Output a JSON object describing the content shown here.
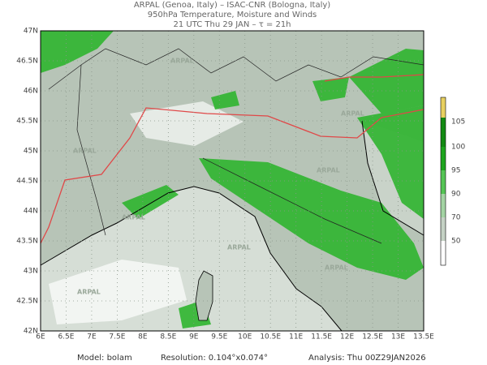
{
  "header": {
    "line1": "ARPAL (Genoa, Italy)  –  ISAC-CNR (Bologna, Italy)",
    "line2": "950hPa Temperature, Moisture and Winds",
    "line3": "21 UTC Thu 29 JAN  –  τ = 21h"
  },
  "map": {
    "lon_labels": [
      "6E",
      "6.5E",
      "7E",
      "7.5E",
      "8E",
      "8.5E",
      "9E",
      "9.5E",
      "10E",
      "10.5E",
      "11E",
      "11.5E",
      "12E",
      "12.5E",
      "13E",
      "13.5E"
    ],
    "lat_labels": [
      "42N",
      "42.5N",
      "43N",
      "43.5N",
      "44N",
      "44.5N",
      "45N",
      "45.5N",
      "46N",
      "46.5N",
      "47N"
    ],
    "watermark": "ARPAL"
  },
  "colorbar": {
    "labels": [
      "105",
      "100",
      "95",
      "90",
      "70",
      "50"
    ]
  },
  "footer": {
    "model": "Model: bolam",
    "resolution": "Resolution: 0.104°x0.074°",
    "analysis": "Analysis: Thu 00Z29JAN2026"
  }
}
